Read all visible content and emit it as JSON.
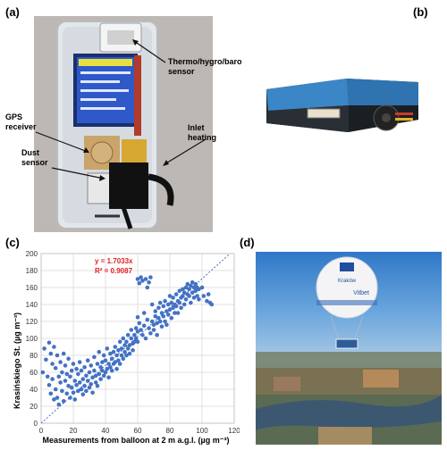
{
  "panels": {
    "a": {
      "label": "(a)",
      "callouts": {
        "thermo_line1": "Thermo/hygro/baro",
        "thermo_line2": "sensor",
        "gps_line1": "GPS",
        "gps_line2": "receiver",
        "inlet_line1": "Inlet",
        "inlet_line2": "heating",
        "dust_line1": "Dust",
        "dust_line2": "sensor"
      }
    },
    "b": {
      "label": "(b)"
    },
    "c": {
      "label": "(c)"
    },
    "d": {
      "label": "(d)",
      "balloon_text": {
        "top": "Kraków",
        "sponsor": "Vitbet"
      }
    }
  },
  "chart_data": {
    "type": "scatter",
    "xlabel": "Measurements from balloon at 2 m a.g.l. (µg m⁻³)",
    "ylabel": "Krasińskiego St. (µg m⁻³)",
    "xlim": [
      0,
      120
    ],
    "ylim": [
      0,
      200
    ],
    "xticks": [
      "0",
      "20",
      "40",
      "60",
      "80",
      "100",
      "120"
    ],
    "yticks": [
      "0",
      "20",
      "40",
      "60",
      "80",
      "100",
      "120",
      "140",
      "160",
      "180",
      "200"
    ],
    "grid": true,
    "fit": {
      "slope": 1.7033,
      "equation": "y = 1.7033x",
      "r2_label": "R² = 0.9087"
    },
    "points": [
      [
        1,
        60
      ],
      [
        2,
        88
      ],
      [
        3,
        75
      ],
      [
        4,
        55
      ],
      [
        5,
        95
      ],
      [
        5,
        45
      ],
      [
        6,
        82
      ],
      [
        6,
        35
      ],
      [
        7,
        70
      ],
      [
        7,
        52
      ],
      [
        8,
        90
      ],
      [
        8,
        28
      ],
      [
        9,
        65
      ],
      [
        9,
        40
      ],
      [
        10,
        80
      ],
      [
        10,
        30
      ],
      [
        11,
        55
      ],
      [
        11,
        22
      ],
      [
        12,
        72
      ],
      [
        12,
        48
      ],
      [
        13,
        38
      ],
      [
        13,
        60
      ],
      [
        14,
        82
      ],
      [
        14,
        26
      ],
      [
        15,
        50
      ],
      [
        15,
        68
      ],
      [
        16,
        35
      ],
      [
        16,
        58
      ],
      [
        17,
        44
      ],
      [
        17,
        76
      ],
      [
        18,
        30
      ],
      [
        18,
        55
      ],
      [
        19,
        62
      ],
      [
        19,
        42
      ],
      [
        20,
        36
      ],
      [
        20,
        70
      ],
      [
        21,
        50
      ],
      [
        21,
        28
      ],
      [
        22,
        64
      ],
      [
        22,
        45
      ],
      [
        23,
        38
      ],
      [
        23,
        58
      ],
      [
        24,
        72
      ],
      [
        24,
        48
      ],
      [
        25,
        40
      ],
      [
        25,
        62
      ],
      [
        26,
        52
      ],
      [
        26,
        34
      ],
      [
        27,
        66
      ],
      [
        27,
        44
      ],
      [
        28,
        56
      ],
      [
        28,
        38
      ],
      [
        29,
        74
      ],
      [
        29,
        50
      ],
      [
        30,
        60
      ],
      [
        30,
        42
      ],
      [
        31,
        46
      ],
      [
        31,
        68
      ],
      [
        32,
        54
      ],
      [
        32,
        36
      ],
      [
        33,
        62
      ],
      [
        33,
        78
      ],
      [
        34,
        48
      ],
      [
        34,
        56
      ],
      [
        35,
        70
      ],
      [
        35,
        44
      ],
      [
        36,
        58
      ],
      [
        36,
        84
      ],
      [
        37,
        52
      ],
      [
        37,
        66
      ],
      [
        38,
        62
      ],
      [
        38,
        72
      ],
      [
        39,
        80
      ],
      [
        39,
        56
      ],
      [
        40,
        74
      ],
      [
        40,
        60
      ],
      [
        41,
        64
      ],
      [
        41,
        88
      ],
      [
        42,
        70
      ],
      [
        42,
        54
      ],
      [
        43,
        66
      ],
      [
        43,
        82
      ],
      [
        44,
        76
      ],
      [
        44,
        62
      ],
      [
        45,
        84
      ],
      [
        45,
        70
      ],
      [
        46,
        72
      ],
      [
        46,
        90
      ],
      [
        47,
        80
      ],
      [
        47,
        64
      ],
      [
        48,
        86
      ],
      [
        48,
        74
      ],
      [
        49,
        70
      ],
      [
        49,
        96
      ],
      [
        50,
        80
      ],
      [
        50,
        88
      ],
      [
        51,
        76
      ],
      [
        51,
        100
      ],
      [
        52,
        84
      ],
      [
        52,
        92
      ],
      [
        53,
        96
      ],
      [
        53,
        80
      ],
      [
        54,
        88
      ],
      [
        54,
        104
      ],
      [
        55,
        92
      ],
      [
        55,
        82
      ],
      [
        56,
        100
      ],
      [
        56,
        110
      ],
      [
        57,
        94
      ],
      [
        57,
        86
      ],
      [
        58,
        104
      ],
      [
        58,
        96
      ],
      [
        59,
        112
      ],
      [
        59,
        100
      ],
      [
        60,
        108
      ],
      [
        60,
        96
      ],
      [
        60,
        125
      ],
      [
        60,
        170
      ],
      [
        61,
        165
      ],
      [
        61,
        118
      ],
      [
        62,
        172
      ],
      [
        62,
        110
      ],
      [
        63,
        168
      ],
      [
        63,
        104
      ],
      [
        64,
        130
      ],
      [
        64,
        115
      ],
      [
        65,
        170
      ],
      [
        65,
        100
      ],
      [
        66,
        160
      ],
      [
        66,
        122
      ],
      [
        67,
        166
      ],
      [
        67,
        112
      ],
      [
        68,
        172
      ],
      [
        68,
        106
      ],
      [
        69,
        120
      ],
      [
        69,
        140
      ],
      [
        70,
        116
      ],
      [
        70,
        110
      ],
      [
        71,
        126
      ],
      [
        71,
        132
      ],
      [
        72,
        118
      ],
      [
        72,
        104
      ],
      [
        73,
        136
      ],
      [
        73,
        124
      ],
      [
        74,
        120
      ],
      [
        74,
        142
      ],
      [
        75,
        130
      ],
      [
        75,
        114
      ],
      [
        76,
        138
      ],
      [
        76,
        126
      ],
      [
        77,
        120
      ],
      [
        77,
        144
      ],
      [
        78,
        132
      ],
      [
        78,
        116
      ],
      [
        79,
        140
      ],
      [
        79,
        128
      ],
      [
        80,
        134
      ],
      [
        80,
        150
      ],
      [
        81,
        124
      ],
      [
        81,
        142
      ],
      [
        82,
        136
      ],
      [
        82,
        148
      ],
      [
        83,
        130
      ],
      [
        83,
        140
      ],
      [
        84,
        152
      ],
      [
        84,
        138
      ],
      [
        85,
        144
      ],
      [
        85,
        130
      ],
      [
        86,
        156
      ],
      [
        86,
        142
      ],
      [
        87,
        148
      ],
      [
        87,
        136
      ],
      [
        88,
        150
      ],
      [
        88,
        158
      ],
      [
        89,
        140
      ],
      [
        89,
        154
      ],
      [
        90,
        160
      ],
      [
        90,
        146
      ],
      [
        91,
        152
      ],
      [
        91,
        164
      ],
      [
        92,
        150
      ],
      [
        92,
        158
      ],
      [
        93,
        162
      ],
      [
        93,
        142
      ],
      [
        94,
        154
      ],
      [
        94,
        166
      ],
      [
        95,
        160
      ],
      [
        95,
        148
      ],
      [
        96,
        156
      ],
      [
        96,
        164
      ],
      [
        97,
        150
      ],
      [
        97,
        160
      ],
      [
        98,
        158
      ],
      [
        98,
        146
      ],
      [
        100,
        160
      ],
      [
        101,
        150
      ],
      [
        103,
        144
      ],
      [
        104,
        152
      ],
      [
        105,
        142
      ],
      [
        106,
        140
      ]
    ]
  }
}
